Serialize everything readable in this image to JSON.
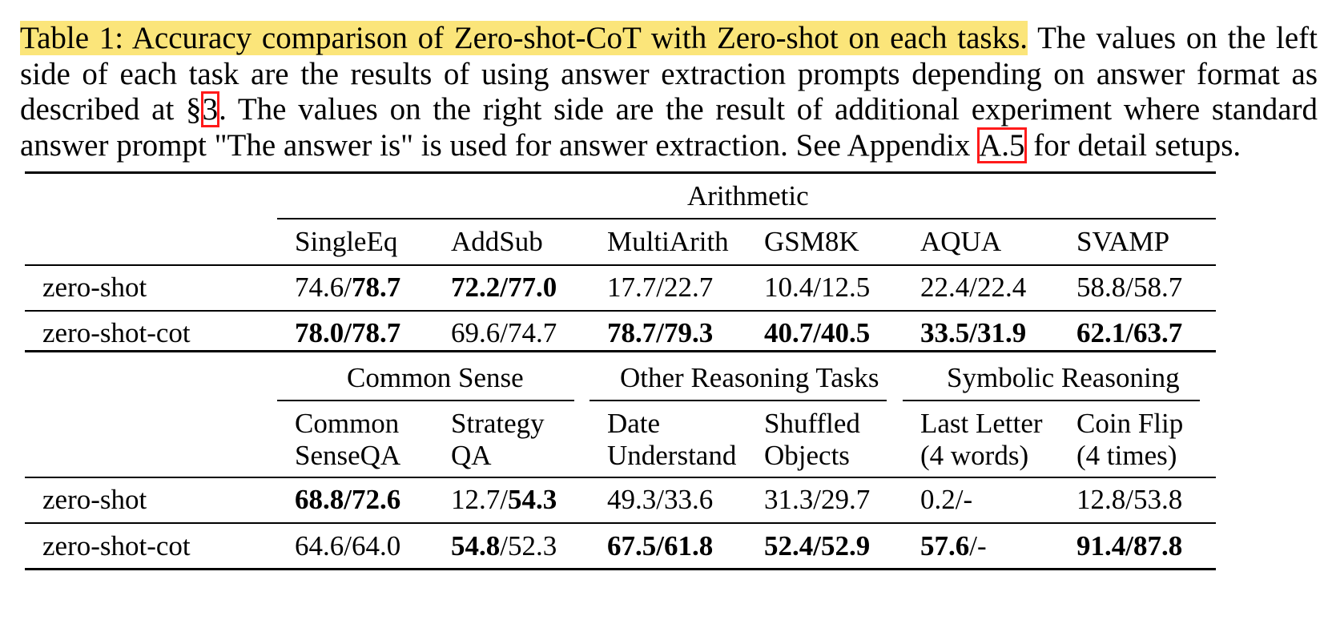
{
  "caption": {
    "highlighted": "Table 1: Accuracy comparison of Zero-shot-CoT with Zero-shot on each tasks.",
    "line1_rest": "The values on the left",
    "line2": "side of each task are the results of using answer extraction prompts depending on answer format as",
    "line3_a": "described at §",
    "ref_section": "3",
    "line3_b": ". The values on the right side are the result of additional experiment where standard",
    "line4_a": "answer prompt \"The answer is\" is used for answer extraction. See Appendix",
    "ref_appendix": "A.5",
    "line4_b": "for detail setups."
  },
  "table1": {
    "group": "Arithmetic",
    "columns": [
      "SingleEq",
      "AddSub",
      "MultiArith",
      "GSM8K",
      "AQUA",
      "SVAMP"
    ],
    "rows": [
      {
        "label": "zero-shot",
        "cells": [
          {
            "a": "74.6/",
            "b": "78.7"
          },
          {
            "b": "72.2/77.0"
          },
          {
            "a": "17.7/22.7"
          },
          {
            "a": "10.4/12.5"
          },
          {
            "a": "22.4/22.4"
          },
          {
            "a": "58.8/58.7"
          }
        ]
      },
      {
        "label": "zero-shot-cot",
        "cells": [
          {
            "b": "78.0/78.7"
          },
          {
            "a": "69.6/74.7"
          },
          {
            "b": "78.7/79.3"
          },
          {
            "b": "40.7/40.5"
          },
          {
            "b": "33.5/31.9"
          },
          {
            "b": "62.1/63.7"
          }
        ]
      }
    ]
  },
  "table2": {
    "groups": [
      "Common Sense",
      "Other Reasoning Tasks",
      "Symbolic Reasoning"
    ],
    "columns": [
      [
        "Common",
        "SenseQA"
      ],
      [
        "Strategy",
        "QA"
      ],
      [
        "Date",
        "Understand"
      ],
      [
        "Shuffled",
        "Objects"
      ],
      [
        "Last Letter",
        "(4 words)"
      ],
      [
        "Coin Flip",
        "(4 times)"
      ]
    ],
    "rows": [
      {
        "label": "zero-shot",
        "cells": [
          {
            "b": "68.8/72.6"
          },
          {
            "a": "12.7/",
            "b": "54.3"
          },
          {
            "a": "49.3/33.6"
          },
          {
            "a": "31.3/29.7"
          },
          {
            "a": "0.2/-"
          },
          {
            "a": "12.8/53.8"
          }
        ]
      },
      {
        "label": "zero-shot-cot",
        "cells": [
          {
            "a": "64.6/64.0"
          },
          {
            "b": "54.8",
            "a2": "/52.3"
          },
          {
            "b": "67.5/61.8"
          },
          {
            "b": "52.4/52.9"
          },
          {
            "b": "57.6",
            "a2": "/-"
          },
          {
            "b": "91.4/87.8"
          }
        ]
      }
    ]
  }
}
